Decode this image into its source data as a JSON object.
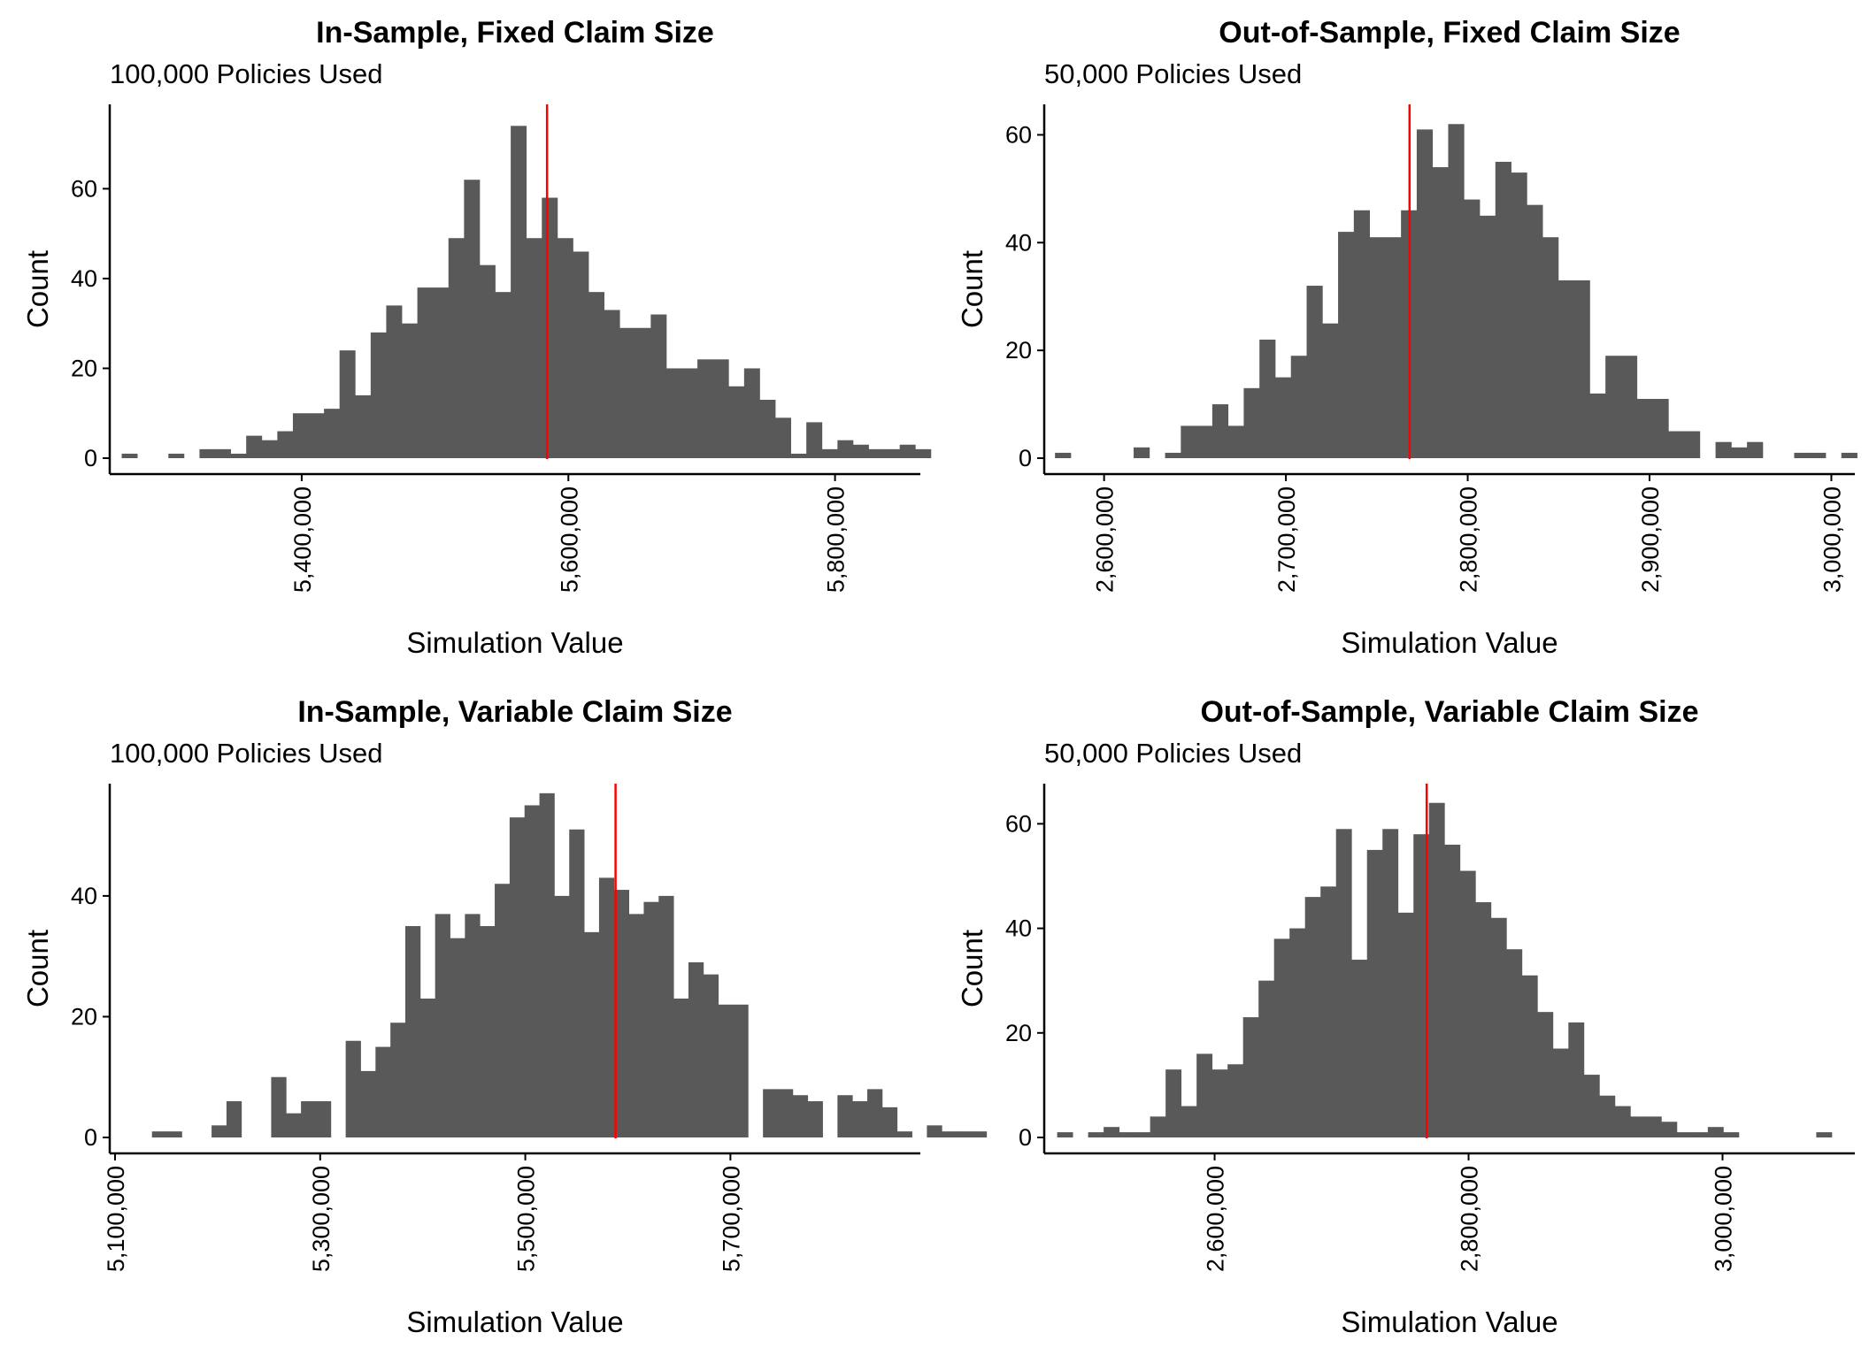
{
  "colors": {
    "bar": "#595959",
    "reference_line": "#ff0000",
    "axis": "#000000",
    "background": "#ffffff"
  },
  "chart_data": [
    {
      "type": "bar",
      "title": "In-Sample, Fixed Claim Size",
      "subtitle": "100,000 Policies Used",
      "xlabel": "Simulation Value",
      "ylabel": "Count",
      "grid": false,
      "xlim": [
        5260000,
        5860000
      ],
      "ylim": [
        0,
        78
      ],
      "x_ticks": [
        5400000,
        5600000,
        5800000
      ],
      "x_tick_labels": [
        "5,400,000",
        "5,600,000",
        "5,800,000"
      ],
      "y_ticks": [
        0,
        20,
        40,
        60
      ],
      "y_tick_labels": [
        "0",
        "20",
        "40",
        "60"
      ],
      "reference_line_x": 5584000,
      "bin_start": 5265000,
      "bin_width": 11670,
      "counts": [
        1,
        0,
        0,
        1,
        0,
        2,
        2,
        1,
        5,
        4,
        6,
        10,
        10,
        11,
        24,
        14,
        28,
        34,
        30,
        38,
        38,
        49,
        62,
        43,
        37,
        74,
        49,
        58,
        49,
        46,
        37,
        33,
        29,
        29,
        32,
        20,
        20,
        22,
        22,
        16,
        20,
        13,
        9,
        1,
        8,
        2,
        4,
        3,
        2,
        2,
        3,
        2
      ]
    },
    {
      "type": "bar",
      "title": "Out-of-Sample, Fixed Claim Size",
      "subtitle": "50,000 Policies Used",
      "xlabel": "Simulation Value",
      "ylabel": "Count",
      "grid": false,
      "xlim": [
        2570000,
        3010000
      ],
      "ylim": [
        0,
        65
      ],
      "x_ticks": [
        2600000,
        2700000,
        2800000,
        2900000,
        3000000
      ],
      "x_tick_labels": [
        "2,600,000",
        "2,700,000",
        "2,800,000",
        "2,900,000",
        "3,000,000"
      ],
      "y_ticks": [
        0,
        20,
        40,
        60
      ],
      "y_tick_labels": [
        "0",
        "20",
        "40",
        "60"
      ],
      "reference_line_x": 2768000,
      "bin_start": 2573000,
      "bin_width": 8650,
      "counts": [
        1,
        0,
        0,
        0,
        0,
        2,
        0,
        1,
        6,
        6,
        10,
        6,
        13,
        22,
        15,
        19,
        32,
        25,
        42,
        46,
        41,
        41,
        46,
        61,
        54,
        62,
        48,
        45,
        55,
        53,
        47,
        41,
        33,
        33,
        12,
        19,
        19,
        11,
        11,
        5,
        5,
        0,
        3,
        2,
        3,
        0,
        0,
        1,
        1,
        0,
        1
      ]
    },
    {
      "type": "bar",
      "title": "In-Sample, Variable Claim Size",
      "subtitle": "100,000 Policies Used",
      "xlabel": "Simulation Value",
      "ylabel": "Count",
      "grid": false,
      "xlim": [
        5100000,
        5880000
      ],
      "ylim": [
        0,
        58
      ],
      "x_ticks": [
        5100000,
        5300000,
        5500000,
        5700000
      ],
      "x_tick_labels": [
        "5,100,000",
        "5,300,000",
        "5,500,000",
        "5,700,000"
      ],
      "y_ticks": [
        0,
        20,
        40
      ],
      "y_tick_labels": [
        "0",
        "20",
        "40"
      ],
      "reference_line_x": 5588000,
      "bin_start": 5136000,
      "bin_width": 14530,
      "counts": [
        1,
        1,
        0,
        0,
        2,
        6,
        0,
        0,
        10,
        4,
        6,
        6,
        0,
        16,
        11,
        15,
        19,
        35,
        23,
        37,
        33,
        37,
        35,
        42,
        53,
        55,
        57,
        40,
        51,
        34,
        43,
        41,
        37,
        39,
        40,
        23,
        29,
        27,
        22,
        22,
        0,
        8,
        8,
        7,
        6,
        0,
        7,
        6,
        8,
        5,
        1,
        0,
        2,
        1,
        1,
        1
      ]
    },
    {
      "type": "bar",
      "title": "Out-of-Sample, Variable Claim Size",
      "subtitle": "50,000 Policies Used",
      "xlabel": "Simulation Value",
      "ylabel": "Count",
      "grid": false,
      "xlim": [
        2470000,
        3100000
      ],
      "ylim": [
        0,
        67
      ],
      "x_ticks": [
        2600000,
        2800000,
        3000000
      ],
      "x_tick_labels": [
        "2,600,000",
        "2,800,000",
        "3,000,000"
      ],
      "y_ticks": [
        0,
        20,
        40,
        60
      ],
      "y_tick_labels": [
        "0",
        "20",
        "40",
        "60"
      ],
      "reference_line_x": 2767000,
      "bin_start": 2476000,
      "bin_width": 12200,
      "counts": [
        1,
        0,
        1,
        2,
        1,
        1,
        4,
        13,
        6,
        16,
        13,
        14,
        23,
        30,
        38,
        40,
        46,
        48,
        59,
        34,
        55,
        59,
        43,
        58,
        64,
        56,
        51,
        45,
        42,
        36,
        31,
        24,
        17,
        22,
        12,
        8,
        6,
        4,
        4,
        3,
        1,
        1,
        2,
        1,
        0,
        0,
        0,
        0,
        0,
        1
      ]
    }
  ]
}
